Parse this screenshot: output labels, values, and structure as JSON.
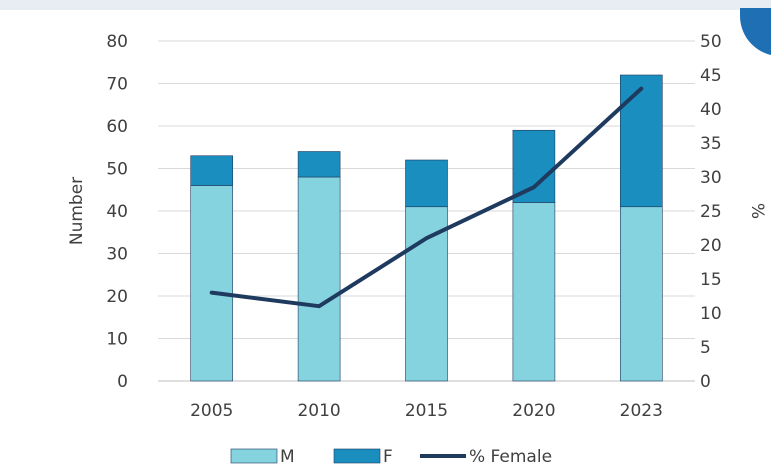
{
  "colors": {
    "male": "#86d3e0",
    "female": "#1a8fbf",
    "line": "#1f3a5f",
    "axis_text": "#404040",
    "background_band": "#e8edf3",
    "corner_mark": "#1f6fb5"
  },
  "chart_data": {
    "type": "bar",
    "stacked": true,
    "categories": [
      "2005",
      "2010",
      "2015",
      "2020",
      "2023"
    ],
    "series": [
      {
        "name": "M",
        "type": "bar",
        "values": [
          46,
          48,
          41,
          42,
          41
        ]
      },
      {
        "name": "F",
        "type": "bar",
        "values": [
          7,
          6,
          11,
          17,
          31
        ]
      },
      {
        "name": "% Female",
        "type": "line",
        "axis": "right",
        "values": [
          13,
          11,
          21,
          28.5,
          43
        ]
      }
    ],
    "ylabel": "Number",
    "y2label": "%",
    "ylim": [
      0,
      80
    ],
    "y2lim": [
      0,
      50
    ],
    "yticks": [
      "0",
      "10",
      "20",
      "30",
      "40",
      "50",
      "60",
      "70",
      "80"
    ],
    "y2ticks": [
      "0",
      "5",
      "10",
      "15",
      "20",
      "25",
      "30",
      "35",
      "40",
      "45",
      "50"
    ],
    "grid": true,
    "legend_position": "bottom"
  }
}
